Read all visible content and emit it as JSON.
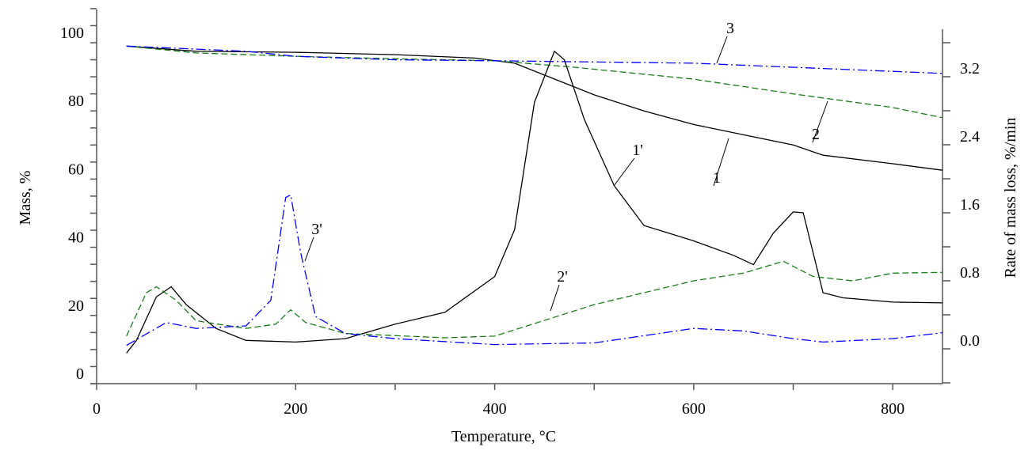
{
  "chart_data": {
    "type": "line",
    "xlabel": "Temperature, °C",
    "ylabel": "Mass, %",
    "y2label": "Rate of mass loss, %/min",
    "xlim": [
      0,
      850
    ],
    "ylim": [
      0,
      110
    ],
    "y2lim": [
      -0.4,
      3.77
    ],
    "xticks": [
      "0",
      "200",
      "400",
      "600",
      "800"
    ],
    "yticks": [
      "0",
      "20",
      "40",
      "60",
      "80",
      "100"
    ],
    "y2ticks": [
      "0.0",
      "0.8",
      "1.6",
      "2.4",
      "3.2"
    ],
    "grid": false,
    "series": [
      {
        "name": "1",
        "axis": "left",
        "color": "#000000",
        "style": "solid",
        "x": [
          30,
          100,
          200,
          300,
          380,
          420,
          450,
          500,
          550,
          600,
          650,
          700,
          730,
          800,
          850
        ],
        "y": [
          99,
          97.5,
          97.2,
          96.5,
          95.5,
          94,
          90.5,
          84.7,
          80,
          76,
          73,
          70,
          67,
          64.5,
          62.6
        ]
      },
      {
        "name": "2",
        "axis": "left",
        "color": "#1a7a1a",
        "style": "dash",
        "x": [
          30,
          100,
          200,
          300,
          400,
          480,
          600,
          700,
          800,
          850
        ],
        "y": [
          99,
          97,
          96,
          95.3,
          94.7,
          92.8,
          89.3,
          85,
          81,
          78
        ]
      },
      {
        "name": "3",
        "axis": "left",
        "color": "#0000ff",
        "style": "dashdot",
        "x": [
          30,
          150,
          200,
          300,
          400,
          600,
          850
        ],
        "y": [
          99,
          97.5,
          96,
          95,
          94.7,
          94,
          91
        ]
      },
      {
        "name": "1'",
        "axis": "right",
        "color": "#000000",
        "style": "solid",
        "x": [
          30,
          40,
          60,
          75,
          90,
          120,
          150,
          200,
          250,
          300,
          350,
          400,
          420,
          440,
          460,
          470,
          490,
          520,
          550,
          600,
          640,
          660,
          680,
          700,
          710,
          730,
          750,
          800,
          850
        ],
        "y": [
          -0.05,
          0.1,
          0.61,
          0.73,
          0.52,
          0.24,
          0.1,
          0.08,
          0.12,
          0.29,
          0.43,
          0.85,
          1.4,
          2.9,
          3.5,
          3.4,
          2.7,
          1.92,
          1.45,
          1.27,
          1.1,
          0.99,
          1.36,
          1.61,
          1.6,
          0.66,
          0.6,
          0.55,
          0.54
        ]
      },
      {
        "name": "2'",
        "axis": "right",
        "color": "#1a7a1a",
        "style": "dash",
        "x": [
          30,
          50,
          60,
          80,
          100,
          150,
          180,
          195,
          210,
          250,
          350,
          400,
          500,
          600,
          650,
          690,
          720,
          760,
          800,
          850
        ],
        "y": [
          0.15,
          0.66,
          0.73,
          0.57,
          0.33,
          0.24,
          0.29,
          0.46,
          0.31,
          0.18,
          0.13,
          0.15,
          0.52,
          0.8,
          0.89,
          1.03,
          0.85,
          0.8,
          0.89,
          0.9
        ]
      },
      {
        "name": "3'",
        "axis": "right",
        "color": "#0000ff",
        "style": "dashdot",
        "x": [
          30,
          70,
          100,
          150,
          175,
          190,
          195,
          205,
          220,
          250,
          300,
          400,
          500,
          600,
          650,
          700,
          730,
          800,
          850
        ],
        "y": [
          0.04,
          0.31,
          0.24,
          0.27,
          0.57,
          1.78,
          1.81,
          1.13,
          0.38,
          0.18,
          0.12,
          0.05,
          0.07,
          0.24,
          0.21,
          0.12,
          0.08,
          0.12,
          0.19
        ]
      }
    ],
    "annotations": [
      "3",
      "2",
      "1",
      "1'",
      "3'",
      "2'"
    ]
  }
}
